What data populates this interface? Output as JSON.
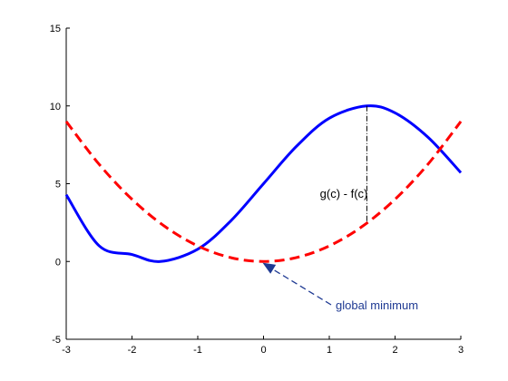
{
  "chart_data": {
    "type": "line",
    "title": "",
    "xlabel": "",
    "ylabel": "",
    "xlim": [
      -3,
      3
    ],
    "ylim": [
      -5,
      15
    ],
    "grid": false,
    "x_ticks": [
      -3,
      -2,
      -1,
      0,
      1,
      2,
      3
    ],
    "y_ticks": [
      -5,
      0,
      5,
      10,
      15
    ],
    "x_tick_labels": [
      "-3",
      "-2",
      "-1",
      "0",
      "1",
      "2",
      "3"
    ],
    "y_tick_labels": [
      "-5",
      "0",
      "5",
      "10",
      "15"
    ],
    "series": [
      {
        "color": "#0000ff",
        "style": "solid",
        "x": [
          -3,
          -2.5,
          -2,
          -1.571,
          -1,
          -0.5,
          0,
          0.5,
          1,
          1.571,
          2,
          2.5,
          3
        ],
        "y": [
          4.29,
          1.01,
          0.45,
          0.0,
          0.79,
          2.6,
          5.0,
          7.4,
          9.21,
          10.0,
          9.55,
          7.99,
          5.71
        ]
      },
      {
        "color": "#ff0000",
        "style": "dashed",
        "x": [
          -3,
          -2.5,
          -2,
          -1.5,
          -1,
          -0.5,
          0,
          0.5,
          1,
          1.5,
          2,
          2.5,
          3
        ],
        "y": [
          9.0,
          6.25,
          4.0,
          2.25,
          1.0,
          0.25,
          0.0,
          0.25,
          1.0,
          2.25,
          4.0,
          6.25,
          9.0
        ]
      }
    ],
    "annotations": [
      {
        "text": "g(c) - f(c)",
        "color": "#000000",
        "x": 1.571,
        "y1": 2.47,
        "y2": 10.0
      },
      {
        "text": "global minimum",
        "color": "#1f3a93",
        "tip_x": 0,
        "tip_y": 0
      }
    ]
  }
}
